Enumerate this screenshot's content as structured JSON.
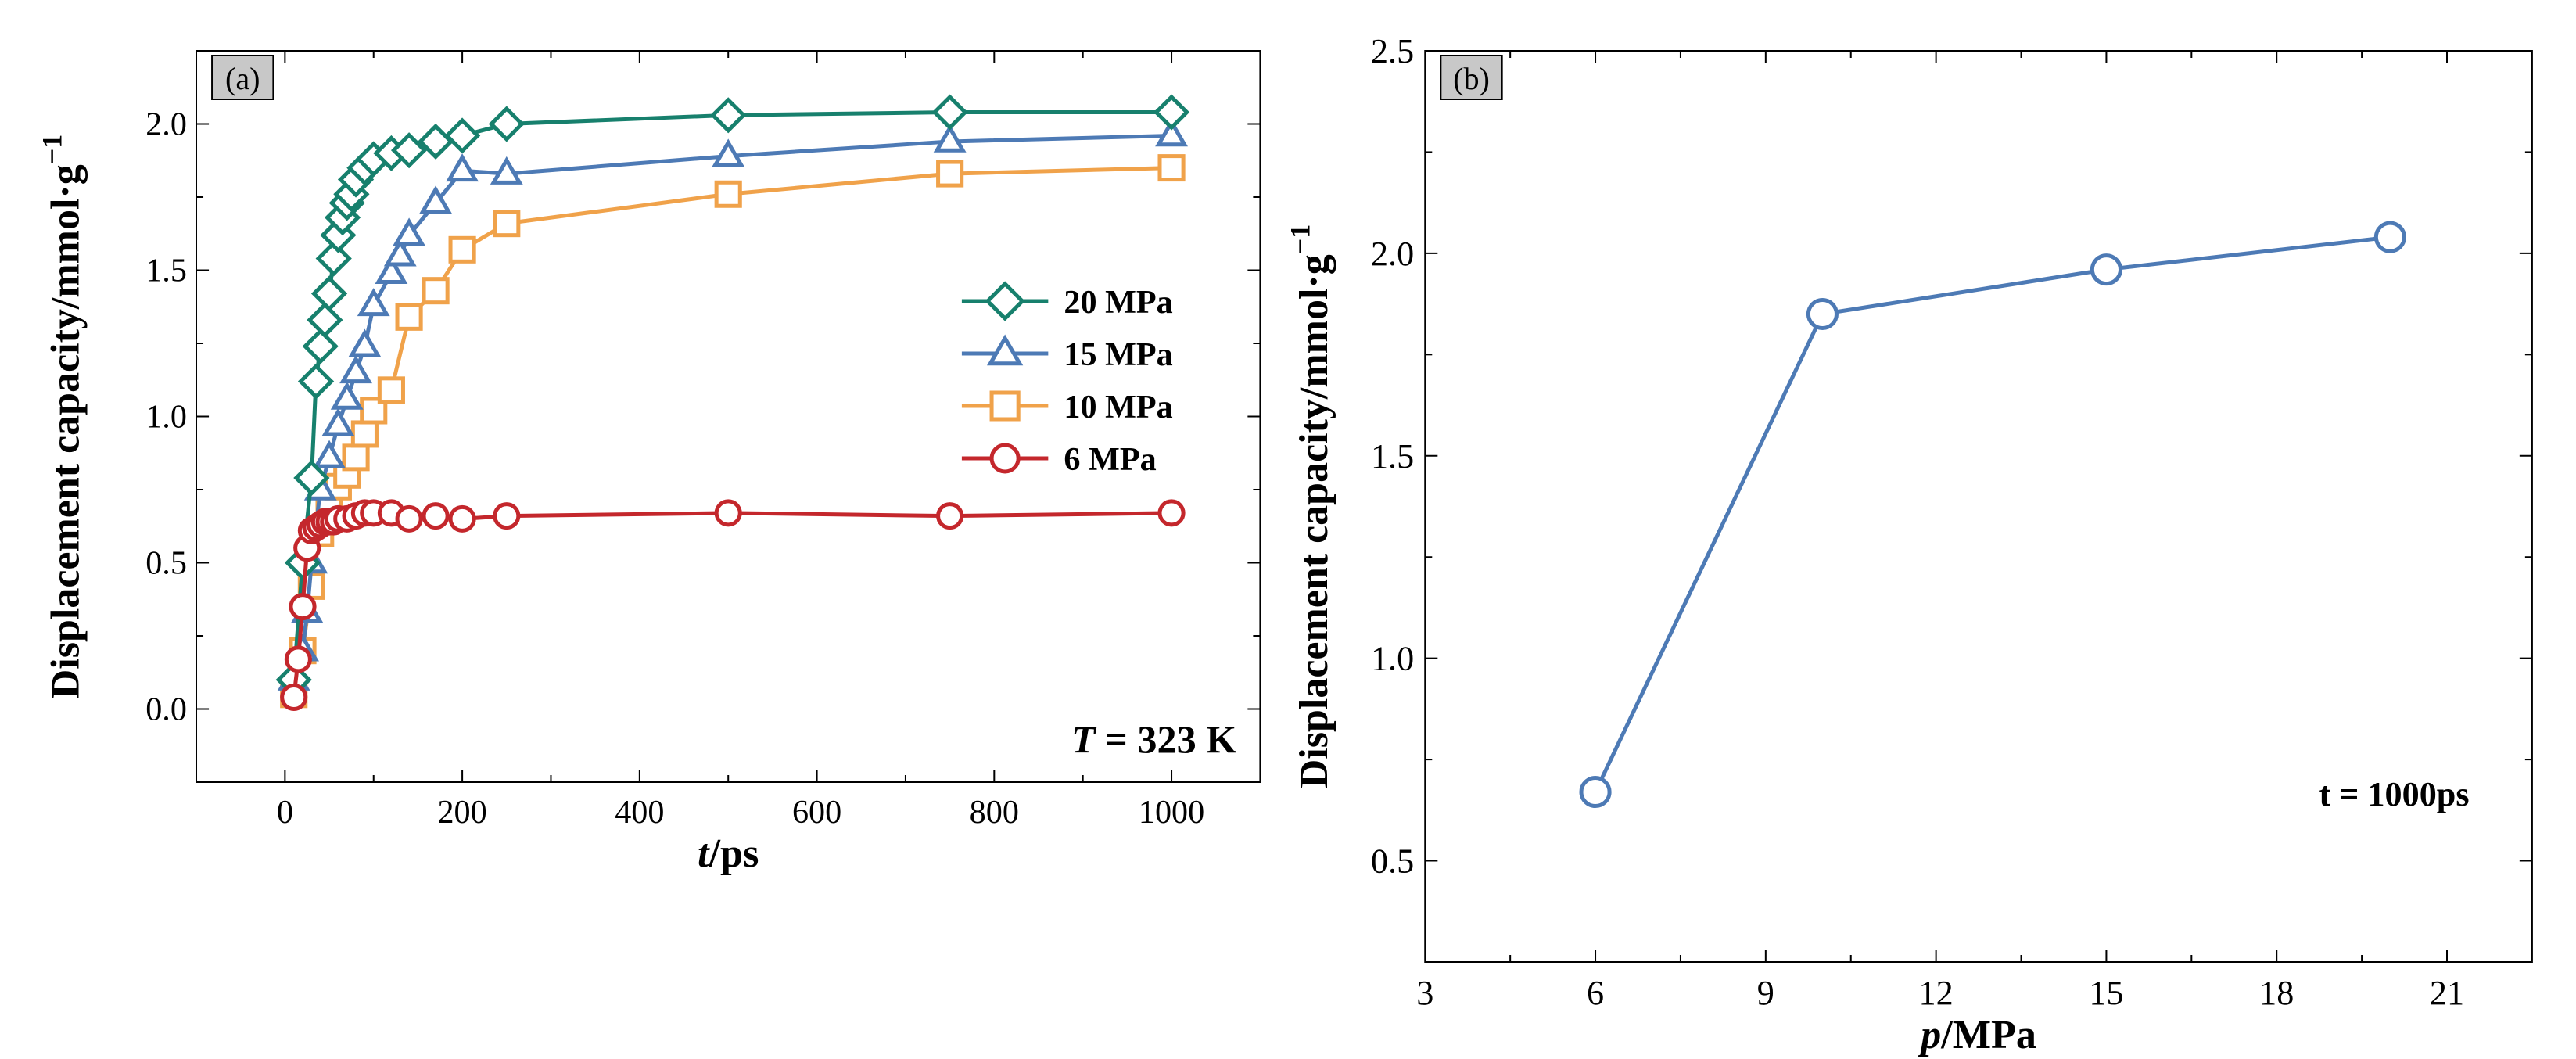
{
  "chart_data": [
    {
      "type": "line",
      "panel_label": "(a)",
      "xlabel_italic": "t",
      "xlabel_rest": "/ps",
      "ylabel": "Displacement capacity/mmol·g",
      "ylabel_sup": "−1",
      "xlim": [
        -100,
        1100
      ],
      "ylim": [
        -0.25,
        2.25
      ],
      "xticks": [
        0,
        200,
        400,
        600,
        800,
        1000
      ],
      "yticks": [
        0.0,
        0.5,
        1.0,
        1.5,
        2.0
      ],
      "ytick_labels": [
        "0.0",
        "0.5",
        "1.0",
        "1.5",
        "2.0"
      ],
      "annotation_italic": "T",
      "annotation_rest": " = 323 K",
      "legend_position": "center-right",
      "series": [
        {
          "name": "20 MPa",
          "color": "#17806d",
          "marker": "diamond",
          "x": [
            10,
            20,
            30,
            35,
            40,
            45,
            50,
            55,
            60,
            65,
            70,
            75,
            80,
            90,
            100,
            120,
            140,
            170,
            200,
            250,
            500,
            750,
            1000
          ],
          "y": [
            0.1,
            0.5,
            0.79,
            1.12,
            1.24,
            1.33,
            1.42,
            1.54,
            1.62,
            1.68,
            1.73,
            1.76,
            1.81,
            1.85,
            1.88,
            1.9,
            1.91,
            1.94,
            1.96,
            2.0,
            2.03,
            2.04,
            2.04
          ]
        },
        {
          "name": "15 MPa",
          "color": "#4d7ab5",
          "marker": "triangle",
          "x": [
            10,
            20,
            25,
            30,
            40,
            50,
            60,
            70,
            80,
            90,
            100,
            120,
            130,
            140,
            170,
            200,
            250,
            500,
            750,
            1000
          ],
          "y": [
            0.1,
            0.2,
            0.33,
            0.5,
            0.75,
            0.86,
            0.97,
            1.06,
            1.15,
            1.24,
            1.38,
            1.49,
            1.55,
            1.62,
            1.73,
            1.84,
            1.83,
            1.89,
            1.94,
            1.96
          ]
        },
        {
          "name": "10 MPa",
          "color": "#f0a24a",
          "marker": "square",
          "x": [
            10,
            20,
            30,
            40,
            50,
            60,
            70,
            80,
            90,
            100,
            120,
            140,
            170,
            200,
            250,
            500,
            750,
            1000
          ],
          "y": [
            0.05,
            0.2,
            0.42,
            0.6,
            0.72,
            0.76,
            0.8,
            0.86,
            0.94,
            1.02,
            1.09,
            1.34,
            1.43,
            1.57,
            1.66,
            1.76,
            1.83,
            1.85
          ]
        },
        {
          "name": "6 MPa",
          "color": "#c4272c",
          "marker": "circle",
          "x": [
            10,
            15,
            20,
            25,
            30,
            35,
            40,
            45,
            50,
            55,
            60,
            70,
            80,
            90,
            100,
            120,
            140,
            170,
            200,
            250,
            500,
            750,
            1000
          ],
          "y": [
            0.04,
            0.17,
            0.35,
            0.55,
            0.61,
            0.62,
            0.63,
            0.64,
            0.64,
            0.64,
            0.65,
            0.65,
            0.66,
            0.67,
            0.67,
            0.67,
            0.65,
            0.66,
            0.65,
            0.66,
            0.67,
            0.66,
            0.67
          ]
        }
      ]
    },
    {
      "type": "line",
      "panel_label": "(b)",
      "xlabel_italic": "p",
      "xlabel_rest": "/MPa",
      "ylabel": "Displacement capacity/mmol·g",
      "ylabel_sup": "−1",
      "xlim": [
        3,
        22.5
      ],
      "ylim": [
        0.25,
        2.5
      ],
      "xticks": [
        3,
        6,
        9,
        12,
        15,
        18,
        21
      ],
      "yticks": [
        0.5,
        1.0,
        1.5,
        2.0,
        2.5
      ],
      "ytick_labels": [
        "0.5",
        "1.0",
        "1.5",
        "2.0",
        "2.5"
      ],
      "annotation": "t = 1000ps",
      "series": [
        {
          "name": "t = 1000ps",
          "color": "#4d7ab5",
          "marker": "circle",
          "x": [
            6,
            10,
            15,
            20
          ],
          "y": [
            0.67,
            1.85,
            1.96,
            2.04
          ]
        }
      ]
    }
  ]
}
